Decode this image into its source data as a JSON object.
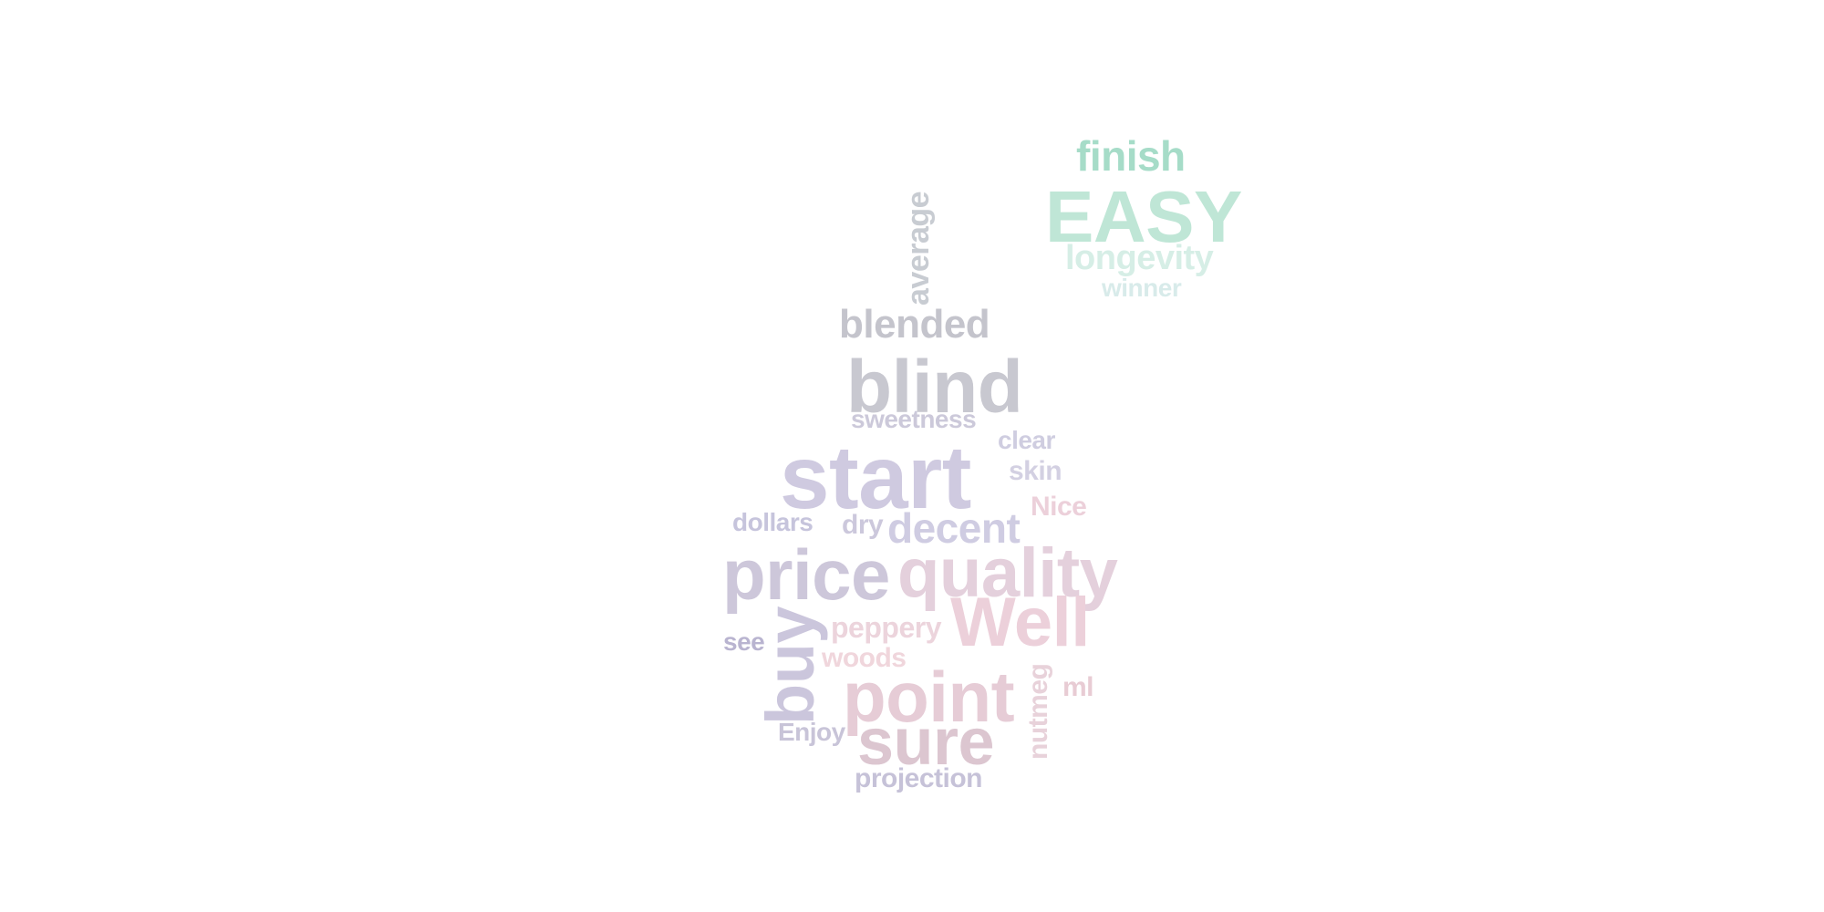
{
  "words": [
    {
      "text": "finish",
      "color": "#a6dcc8",
      "vertical": false
    },
    {
      "text": "EASY",
      "color": "#bfe6d6",
      "vertical": false
    },
    {
      "text": "longevity",
      "color": "#d6eee6",
      "vertical": false
    },
    {
      "text": "winner",
      "color": "#d8ebea",
      "vertical": false
    },
    {
      "text": "average",
      "color": "#c8ccd2",
      "vertical": true
    },
    {
      "text": "blended",
      "color": "#c4c4cc",
      "vertical": false
    },
    {
      "text": "blind",
      "color": "#c8c8d0",
      "vertical": false
    },
    {
      "text": "sweetness",
      "color": "#ccc9da",
      "vertical": false
    },
    {
      "text": "clear",
      "color": "#cfcde0",
      "vertical": false
    },
    {
      "text": "start",
      "color": "#cfcae0",
      "vertical": false
    },
    {
      "text": "skin",
      "color": "#d3d0e2",
      "vertical": false
    },
    {
      "text": "Nice",
      "color": "#ecd0da",
      "vertical": false
    },
    {
      "text": "dollars",
      "color": "#c6c4dc",
      "vertical": false
    },
    {
      "text": "dry",
      "color": "#ccc8dc",
      "vertical": false
    },
    {
      "text": "decent",
      "color": "#cfcce2",
      "vertical": false
    },
    {
      "text": "price",
      "color": "#cdc7da",
      "vertical": false
    },
    {
      "text": "quality",
      "color": "#e4d0dc",
      "vertical": false
    },
    {
      "text": "Well",
      "color": "#ecd0da",
      "vertical": false
    },
    {
      "text": "buy",
      "color": "#cbc6dc",
      "vertical": true
    },
    {
      "text": "see",
      "color": "#b9b4d0",
      "vertical": false
    },
    {
      "text": "peppery",
      "color": "#ecd4dc",
      "vertical": false
    },
    {
      "text": "woods",
      "color": "#f0d6dc",
      "vertical": false
    },
    {
      "text": "point",
      "color": "#e6ccd6",
      "vertical": false
    },
    {
      "text": "nutmeg",
      "color": "#e8d2da",
      "vertical": true
    },
    {
      "text": "ml",
      "color": "#e8ccd4",
      "vertical": false
    },
    {
      "text": "Enjoy",
      "color": "#c8c4d8",
      "vertical": false
    },
    {
      "text": "sure",
      "color": "#dcc6d0",
      "vertical": false
    },
    {
      "text": "projection",
      "color": "#c6c2d8",
      "vertical": false
    }
  ]
}
